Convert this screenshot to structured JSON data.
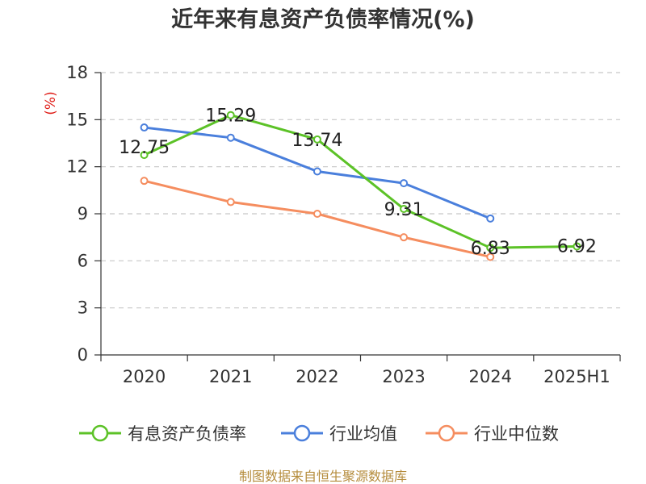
{
  "chart_data": {
    "type": "line",
    "title": "近年来有息资产负债率情况(%)",
    "ylabel": "(%)",
    "xlabel": "",
    "categories": [
      "2020",
      "2021",
      "2022",
      "2023",
      "2024",
      "2025H1"
    ],
    "ylim": [
      0,
      18
    ],
    "yticks": [
      0,
      3,
      6,
      9,
      12,
      15,
      18
    ],
    "grid": true,
    "legend_position": "bottom",
    "series": [
      {
        "name": "有息资产负债率",
        "color": "#5cc227",
        "values": [
          12.75,
          15.29,
          13.74,
          9.31,
          6.83,
          6.92
        ],
        "labels": [
          "12.75",
          "15.29",
          "13.74",
          "9.31",
          "6.83",
          "6.92"
        ]
      },
      {
        "name": "行业均值",
        "color": "#4a7fdc",
        "values": [
          14.5,
          13.85,
          11.7,
          10.95,
          8.7,
          null
        ]
      },
      {
        "name": "行业中位数",
        "color": "#f58d5f",
        "values": [
          11.1,
          9.75,
          9.0,
          7.5,
          6.25,
          null
        ]
      }
    ],
    "source": "制图数据来自恒生聚源数据库"
  }
}
